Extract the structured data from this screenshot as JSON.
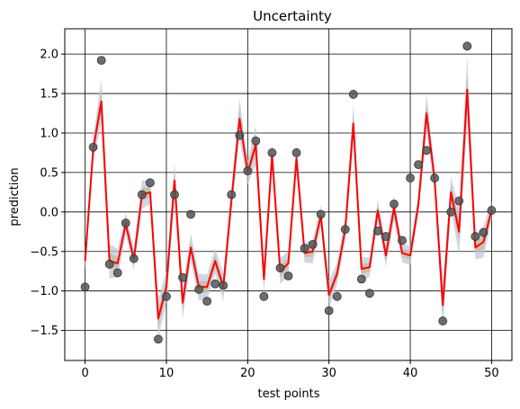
{
  "chart_data": {
    "type": "scatter",
    "title": "Uncertainty",
    "xlabel": "test points",
    "ylabel": "prediction",
    "xlim": [
      -2.5,
      52.5
    ],
    "ylim": [
      -1.88,
      2.32
    ],
    "xticks": [
      0,
      10,
      20,
      30,
      40,
      50
    ],
    "xtick_labels": [
      "0",
      "10",
      "20",
      "30",
      "40",
      "50"
    ],
    "yticks": [
      -1.5,
      -1.0,
      -0.5,
      0.0,
      0.5,
      1.0,
      1.5,
      2.0
    ],
    "ytick_labels": [
      "−1.5",
      "−1.0",
      "−0.5",
      "0.0",
      "0.5",
      "1.0",
      "1.5",
      "2.0"
    ],
    "grid": true,
    "x": [
      0,
      1,
      2,
      3,
      4,
      5,
      6,
      7,
      8,
      9,
      10,
      11,
      12,
      13,
      14,
      15,
      16,
      17,
      18,
      19,
      20,
      21,
      22,
      23,
      24,
      25,
      26,
      27,
      28,
      29,
      30,
      31,
      32,
      33,
      34,
      35,
      36,
      37,
      38,
      39,
      40,
      41,
      42,
      43,
      44,
      45,
      46,
      47,
      48,
      49,
      50
    ],
    "observed": [
      -0.95,
      0.82,
      1.92,
      -0.66,
      -0.77,
      -0.14,
      -0.59,
      0.22,
      0.37,
      -1.61,
      -1.07,
      0.22,
      -0.83,
      -0.03,
      -0.98,
      -1.13,
      -0.91,
      -0.93,
      0.22,
      0.97,
      0.52,
      0.9,
      -1.07,
      0.75,
      -0.71,
      -0.81,
      0.75,
      -0.46,
      -0.41,
      -0.03,
      -1.25,
      -1.07,
      -0.22,
      1.49,
      -0.85,
      -1.03,
      -0.24,
      -0.31,
      0.1,
      -0.36,
      0.43,
      0.6,
      0.78,
      0.43,
      -1.38,
      0.0,
      0.14,
      2.1,
      -0.31,
      -0.26,
      0.02
    ],
    "predicted_mean": [
      -0.62,
      0.8,
      1.4,
      -0.62,
      -0.65,
      -0.15,
      -0.6,
      0.22,
      0.25,
      -1.35,
      -0.95,
      0.4,
      -1.15,
      -0.45,
      -0.95,
      -0.95,
      -0.62,
      -0.95,
      0.15,
      1.18,
      0.5,
      0.85,
      -0.85,
      0.72,
      -0.75,
      -0.65,
      0.68,
      -0.52,
      -0.5,
      -0.05,
      -1.05,
      -0.78,
      -0.22,
      1.12,
      -0.72,
      -0.7,
      0.02,
      -0.55,
      0.05,
      -0.52,
      -0.55,
      0.1,
      1.25,
      0.4,
      -1.18,
      0.25,
      -0.25,
      1.55,
      -0.45,
      -0.38,
      0.02
    ],
    "band_halfwidth": [
      0.12,
      0.15,
      0.28,
      0.22,
      0.18,
      0.14,
      0.14,
      0.18,
      0.15,
      0.25,
      0.2,
      0.22,
      0.2,
      0.18,
      0.17,
      0.16,
      0.16,
      0.18,
      0.15,
      0.26,
      0.15,
      0.25,
      0.18,
      0.15,
      0.16,
      0.16,
      0.17,
      0.12,
      0.15,
      0.14,
      0.18,
      0.14,
      0.15,
      0.25,
      0.15,
      0.12,
      0.14,
      0.14,
      0.16,
      0.12,
      0.12,
      0.14,
      0.25,
      0.15,
      0.3,
      0.2,
      0.3,
      0.42,
      0.15,
      0.2,
      0.12
    ],
    "colors": {
      "mean_line": "#ff0000",
      "points": "#555555",
      "band": "#b8c8d8",
      "band_inner": "#c8b898"
    }
  }
}
